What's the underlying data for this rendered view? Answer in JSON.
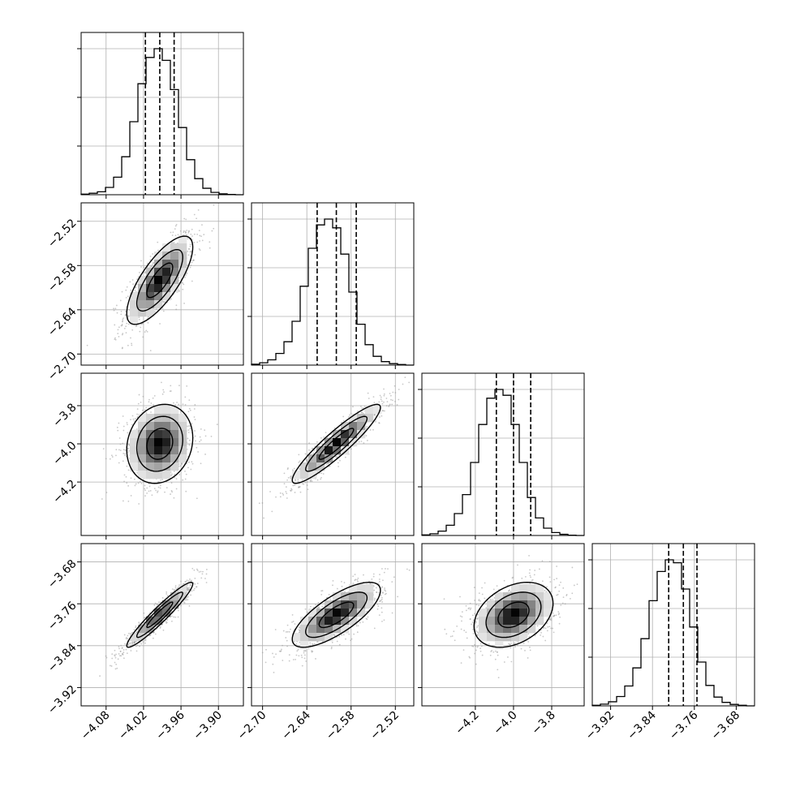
{
  "chart_data": {
    "type": "corner",
    "n_params": 4,
    "grid": true,
    "colors": {
      "hist": "#000000",
      "quantile": "#000000",
      "scatter": "#9a9a9a",
      "grid": "#b0b0b0"
    },
    "axis_ticks": [
      [
        "-4.08",
        "-4.02",
        "-3.96",
        "-3.90"
      ],
      [
        "-2.70",
        "-2.64",
        "-2.58",
        "-2.52"
      ],
      [
        "-4.2",
        "-4.0",
        "-3.8"
      ],
      [
        "-3.92",
        "-3.84",
        "-3.76",
        "-3.68"
      ]
    ],
    "params": [
      {
        "range": [
          -4.12,
          -3.86
        ],
        "ticks": [
          -4.08,
          -4.02,
          -3.96,
          -3.9
        ],
        "quantiles": [
          -4.017,
          -3.994,
          -3.971
        ],
        "std": 0.023
      },
      {
        "range": [
          -2.715,
          -2.495
        ],
        "ticks": [
          -2.7,
          -2.64,
          -2.58,
          -2.52
        ],
        "quantiles": [
          -2.626,
          -2.6,
          -2.573
        ],
        "std": 0.026
      },
      {
        "range": [
          -4.48,
          -3.63
        ],
        "ticks": [
          -4.2,
          -4.0,
          -3.8
        ],
        "quantiles": [
          -4.09,
          -4.0,
          -3.91
        ],
        "std": 0.09
      },
      {
        "range": [
          -3.955,
          -3.645
        ],
        "ticks": [
          -3.92,
          -3.84,
          -3.76,
          -3.68
        ],
        "quantiles": [
          -3.809,
          -3.781,
          -3.755
        ],
        "std": 0.027
      }
    ],
    "histograms": [
      {
        "bin_edges": [
          -4.12,
          -4.107,
          -4.094,
          -4.081,
          -4.068,
          -4.055,
          -4.042,
          -4.029,
          -4.016,
          -4.003,
          -3.99,
          -3.977,
          -3.964,
          -3.951,
          -3.938,
          -3.925,
          -3.912,
          -3.899,
          -3.886,
          -3.873,
          -3.86
        ],
        "counts": [
          2,
          5,
          10,
          25,
          60,
          130,
          250,
          380,
          470,
          500,
          460,
          360,
          230,
          120,
          55,
          22,
          8,
          3,
          1,
          0
        ]
      },
      {
        "bin_edges": [
          -2.715,
          -2.704,
          -2.693,
          -2.682,
          -2.671,
          -2.66,
          -2.649,
          -2.638,
          -2.627,
          -2.616,
          -2.605,
          -2.594,
          -2.583,
          -2.572,
          -2.561,
          -2.55,
          -2.539,
          -2.528,
          -2.517,
          -2.506,
          -2.495
        ],
        "counts": [
          3,
          8,
          18,
          40,
          80,
          150,
          270,
          400,
          480,
          500,
          470,
          380,
          250,
          140,
          70,
          30,
          12,
          5,
          2,
          0
        ]
      },
      {
        "bin_edges": [
          -4.48,
          -4.4375,
          -4.395,
          -4.3525,
          -4.31,
          -4.2675,
          -4.225,
          -4.1825,
          -4.14,
          -4.0975,
          -4.055,
          -4.0125,
          -3.97,
          -3.9275,
          -3.885,
          -3.8425,
          -3.8,
          -3.7575,
          -3.715,
          -3.6725,
          -3.63
        ],
        "counts": [
          2,
          6,
          15,
          35,
          75,
          140,
          250,
          380,
          470,
          500,
          480,
          380,
          250,
          130,
          60,
          25,
          10,
          4,
          1,
          0
        ]
      },
      {
        "bin_edges": [
          -3.955,
          -3.9395,
          -3.924,
          -3.9085,
          -3.893,
          -3.8775,
          -3.862,
          -3.8465,
          -3.831,
          -3.8155,
          -3.8,
          -3.7845,
          -3.769,
          -3.7535,
          -3.738,
          -3.7225,
          -3.707,
          -3.6915,
          -3.676,
          -3.6605,
          -3.645
        ],
        "counts": [
          2,
          6,
          14,
          32,
          68,
          130,
          230,
          360,
          460,
          500,
          490,
          400,
          270,
          150,
          70,
          30,
          12,
          5,
          2,
          0
        ]
      }
    ],
    "correlations": [
      [
        1,
        0.75,
        0.15,
        0.95
      ],
      [
        0.75,
        1,
        0.92,
        0.75
      ],
      [
        0.15,
        0.92,
        1,
        0.35
      ],
      [
        0.95,
        0.75,
        0.35,
        1
      ]
    ]
  }
}
